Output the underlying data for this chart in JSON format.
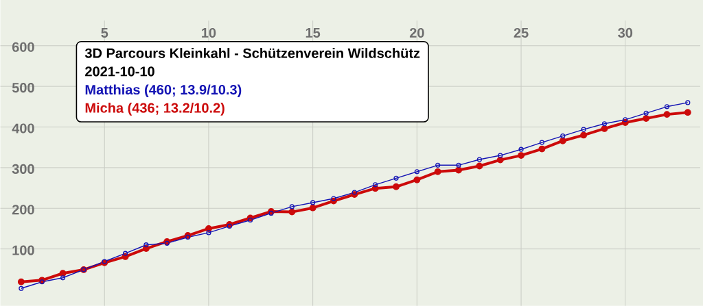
{
  "chart_data": {
    "type": "line",
    "title": "3D Parcours Kleinkahl - Schützenverein Wildschütz",
    "subtitle": "2021-10-10",
    "x": [
      1,
      2,
      3,
      4,
      5,
      6,
      7,
      8,
      9,
      10,
      11,
      12,
      13,
      14,
      15,
      16,
      17,
      18,
      19,
      20,
      21,
      22,
      23,
      24,
      25,
      26,
      27,
      28,
      29,
      30,
      31,
      32,
      33
    ],
    "series": [
      {
        "name": "Matthias (460; 13.9/10.3)",
        "color": "#1414b4",
        "values": [
          3,
          19,
          29,
          49,
          69,
          89,
          110,
          114,
          129,
          140,
          156,
          171,
          188,
          204,
          214,
          224,
          239,
          258,
          274,
          290,
          306,
          306,
          320,
          330,
          345,
          362,
          378,
          394,
          408,
          418,
          434,
          450,
          460
        ]
      },
      {
        "name": "Micha (436; 13.2/10.2)",
        "color": "#cc0a0a",
        "values": [
          19,
          23,
          40,
          49,
          66,
          81,
          101,
          118,
          133,
          150,
          160,
          176,
          192,
          191,
          201,
          218,
          234,
          249,
          253,
          270,
          290,
          294,
          304,
          319,
          330,
          346,
          366,
          380,
          396,
          411,
          421,
          431,
          436
        ]
      }
    ],
    "xlim": [
      0,
      33.6
    ],
    "ylim": [
      -40,
      662
    ],
    "xticks": [
      5,
      10,
      15,
      20,
      25,
      30
    ],
    "yticks": [
      100,
      200,
      300,
      400,
      500,
      600
    ],
    "grid": true,
    "legend": "top left",
    "marker": "circle"
  }
}
